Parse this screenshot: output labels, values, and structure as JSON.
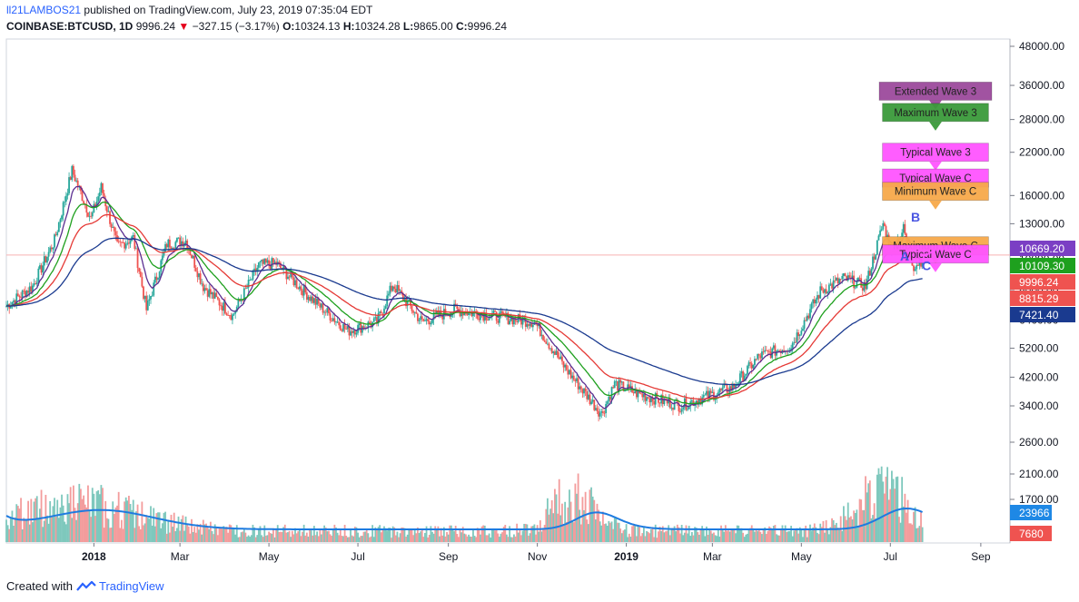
{
  "header": {
    "username": "ll21LAMBOS21",
    "published": "published on TradingView.com, July 23, 2019 07:35:04 EDT",
    "symbol": "COINBASE:BTCUSD, 1D",
    "last": "9996.24",
    "change": "−327.15 (−3.17%)",
    "o_label": "O:",
    "o": "10324.13",
    "h_label": "H:",
    "h": "10324.28",
    "l_label": "L:",
    "l": "9865.00",
    "c_label": "C:",
    "c": "9996.24"
  },
  "footer": {
    "created": "Created with",
    "brand": "TradingView"
  },
  "colors": {
    "up": "#7ec8bd",
    "down": "#f39c9c",
    "ma_fast": "#5b2e91",
    "ma_green": "#1ea01e",
    "ma_red": "#e53935",
    "ma_blue": "#1a3a8f",
    "vol_ma": "#1e7be0"
  },
  "chart_data": {
    "type": "candlestick",
    "y_scale": "log",
    "y_ticks": [
      3400,
      4200,
      5200,
      6400,
      8000,
      10000,
      13000,
      16000,
      22000,
      28000,
      36000,
      48000
    ],
    "y_tick_labels": [
      "3400.00",
      "4200.00",
      "5200.00",
      "6400.00",
      "8000.00",
      "10000.00",
      "13000.00",
      "16000.00",
      "22000.00",
      "28000.00",
      "36000.00",
      "48000.00"
    ],
    "x_tick_labels": [
      "2018",
      "Mar",
      "May",
      "Jul",
      "Sep",
      "Nov",
      "2019",
      "Mar",
      "May",
      "Jul",
      "Sep"
    ],
    "x_tick_dates": [
      "2018-01-01",
      "2018-03-01",
      "2018-05-01",
      "2018-07-01",
      "2018-09-01",
      "2018-11-01",
      "2019-01-01",
      "2019-03-01",
      "2019-05-01",
      "2019-07-01",
      "2019-09-01"
    ],
    "x_range": [
      "2017-11-02",
      "2019-09-21"
    ],
    "vol_ticks": [
      1700,
      2100,
      2600
    ],
    "vol_tick_labels": [
      "1700.00",
      "2100.00",
      "2600.00"
    ],
    "price_series": [
      {
        "date": "2017-11-02",
        "price": 7100
      },
      {
        "date": "2017-11-20",
        "price": 8200
      },
      {
        "date": "2017-12-05",
        "price": 11500
      },
      {
        "date": "2017-12-17",
        "price": 19200
      },
      {
        "date": "2017-12-30",
        "price": 13500
      },
      {
        "date": "2018-01-06",
        "price": 17000
      },
      {
        "date": "2018-01-17",
        "price": 11000
      },
      {
        "date": "2018-01-28",
        "price": 11700
      },
      {
        "date": "2018-02-06",
        "price": 6900
      },
      {
        "date": "2018-02-20",
        "price": 11200
      },
      {
        "date": "2018-03-05",
        "price": 11500
      },
      {
        "date": "2018-03-17",
        "price": 8200
      },
      {
        "date": "2018-04-06",
        "price": 6600
      },
      {
        "date": "2018-04-24",
        "price": 9600
      },
      {
        "date": "2018-05-06",
        "price": 9700
      },
      {
        "date": "2018-05-30",
        "price": 7500
      },
      {
        "date": "2018-06-24",
        "price": 5900
      },
      {
        "date": "2018-07-14",
        "price": 6300
      },
      {
        "date": "2018-07-25",
        "price": 8300
      },
      {
        "date": "2018-08-14",
        "price": 6300
      },
      {
        "date": "2018-09-05",
        "price": 6900
      },
      {
        "date": "2018-09-30",
        "price": 6600
      },
      {
        "date": "2018-10-30",
        "price": 6300
      },
      {
        "date": "2018-11-20",
        "price": 4500
      },
      {
        "date": "2018-12-15",
        "price": 3200
      },
      {
        "date": "2018-12-24",
        "price": 4000
      },
      {
        "date": "2019-01-10",
        "price": 3700
      },
      {
        "date": "2019-02-07",
        "price": 3400
      },
      {
        "date": "2019-03-15",
        "price": 3900
      },
      {
        "date": "2019-04-02",
        "price": 4900
      },
      {
        "date": "2019-04-24",
        "price": 5300
      },
      {
        "date": "2019-05-14",
        "price": 7900
      },
      {
        "date": "2019-05-30",
        "price": 8700
      },
      {
        "date": "2019-06-14",
        "price": 8200
      },
      {
        "date": "2019-06-26",
        "price": 13000
      },
      {
        "date": "2019-07-02",
        "price": 10600
      },
      {
        "date": "2019-07-10",
        "price": 12500
      },
      {
        "date": "2019-07-17",
        "price": 9500
      },
      {
        "date": "2019-07-23",
        "price": 9996
      }
    ],
    "price_labels": [
      {
        "label": "10669.20",
        "value": 10669.2,
        "color": "#7b3fc4"
      },
      {
        "label": "10109.30",
        "value": 10109.3,
        "color": "#1ea01e"
      },
      {
        "label": "9996.24",
        "value": 9996.24,
        "color": "#ef5350"
      },
      {
        "label": "8815.29",
        "value": 8815.29,
        "color": "#ef5350"
      },
      {
        "label": "7421.40",
        "value": 7421.4,
        "color": "#1a3a8f"
      }
    ],
    "volume_labels": [
      {
        "label": "23966",
        "color": "#1e88e5"
      },
      {
        "label": "7680",
        "color": "#ef5350"
      }
    ],
    "annotations": [
      {
        "text": "Extended Wave 3",
        "color": "#9c4a9c",
        "y": 34500
      },
      {
        "text": "Maximum Wave 3",
        "color": "#3a9a3a",
        "y": 29500
      },
      {
        "text": "Typical Wave 3",
        "color": "#ff55ff",
        "y": 22000
      },
      {
        "text": "Typical Wave C",
        "color": "#ff55ff",
        "y": 18200
      },
      {
        "text": "Minimum Wave C",
        "color": "#f7a94a",
        "y": 16500
      },
      {
        "text": "Maximum Wave C",
        "color": "#f7a94a",
        "y": 11050
      },
      {
        "text": "Typical Wave C",
        "color": "#ff55ff",
        "y": 10400
      }
    ],
    "wave_labels": [
      "B",
      "A",
      "C"
    ],
    "horizontal_line": 10324
  }
}
